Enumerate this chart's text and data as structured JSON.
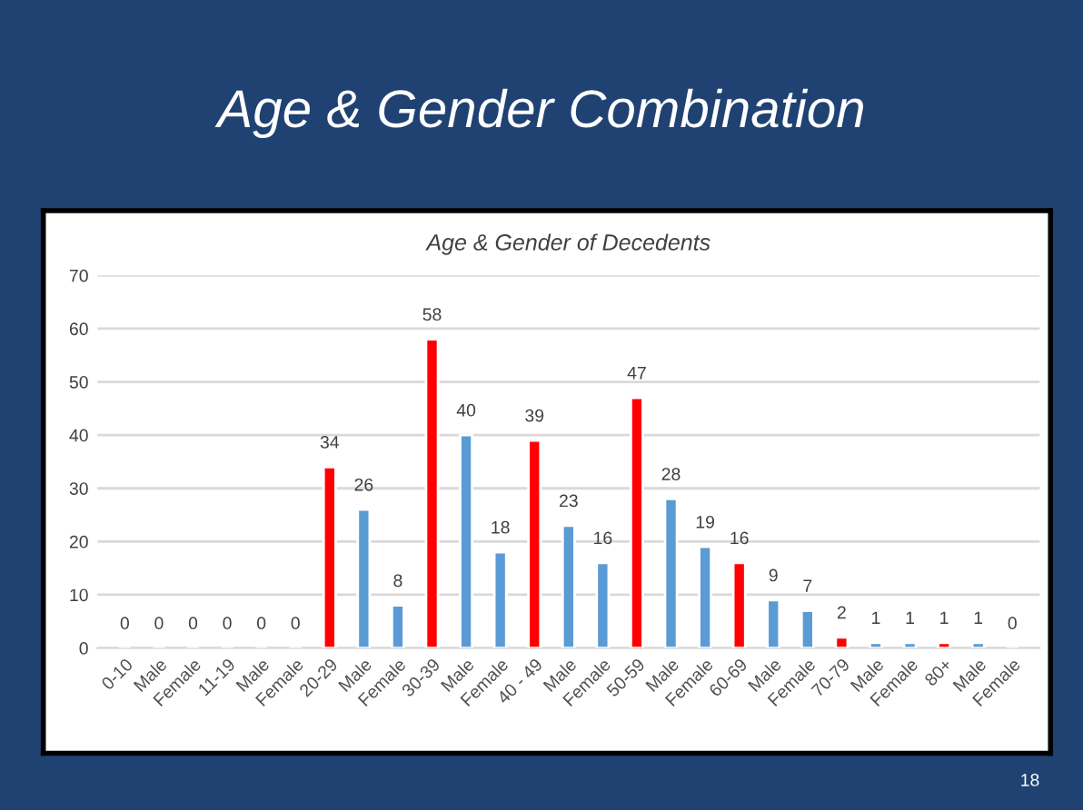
{
  "chart_data": {
    "type": "bar",
    "title": "Age & Gender Combination",
    "subtitle": "Age & Gender of Decedents",
    "categories": [
      "0-10",
      "Male",
      "Female",
      "11-19",
      "Male",
      "Female",
      "20-29",
      "Male",
      "Female",
      "30-39",
      "Male",
      "Female",
      "40 - 49",
      "Male",
      "Female",
      "50-59",
      "Male",
      "Female",
      "60-69",
      "Male",
      "Female",
      "70-79",
      "Male",
      "Female",
      "80+",
      "Male",
      "Female"
    ],
    "values": [
      0,
      0,
      0,
      0,
      0,
      0,
      34,
      26,
      8,
      58,
      40,
      18,
      39,
      23,
      16,
      47,
      28,
      19,
      16,
      9,
      7,
      2,
      1,
      1,
      1,
      1,
      0
    ],
    "colors": [
      null,
      null,
      null,
      null,
      null,
      null,
      "#ff0000",
      "#5b9bd5",
      "#5b9bd5",
      "#ff0000",
      "#5b9bd5",
      "#5b9bd5",
      "#ff0000",
      "#5b9bd5",
      "#5b9bd5",
      "#ff0000",
      "#5b9bd5",
      "#5b9bd5",
      "#ff0000",
      "#5b9bd5",
      "#5b9bd5",
      "#ff0000",
      "#5b9bd5",
      "#5b9bd5",
      "#ff0000",
      "#5b9bd5",
      null
    ],
    "ylim": [
      0,
      70
    ],
    "yticks": [
      0,
      10,
      20,
      30,
      40,
      50,
      60,
      70
    ],
    "grid": "y",
    "data_labels": true,
    "legend": false,
    "annotations": [
      "18"
    ]
  }
}
